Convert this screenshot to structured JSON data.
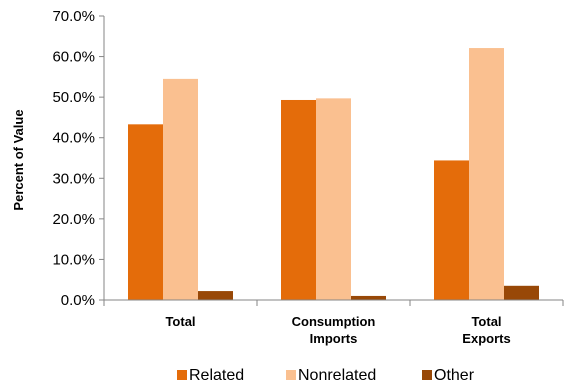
{
  "chart_data": {
    "type": "bar",
    "categories": [
      [
        "Total"
      ],
      [
        "Consumption",
        "Imports"
      ],
      [
        "Total",
        "Exports"
      ]
    ],
    "series": [
      {
        "name": "Related",
        "color": "#e46c0a",
        "values": [
          43.3,
          49.3,
          34.4
        ]
      },
      {
        "name": "Nonrelated",
        "color": "#fac090",
        "values": [
          54.5,
          49.7,
          62.1
        ]
      },
      {
        "name": "Other",
        "color": "#984807",
        "values": [
          2.2,
          1.0,
          3.5
        ]
      }
    ],
    "ylabel": "Percent  of  Value",
    "ylim": [
      0,
      70
    ],
    "yticks": [
      "0.0%",
      "10.0%",
      "20.0%",
      "30.0%",
      "40.0%",
      "50.0%",
      "60.0%",
      "70.0%"
    ],
    "grid": false,
    "legend_position": "bottom"
  }
}
